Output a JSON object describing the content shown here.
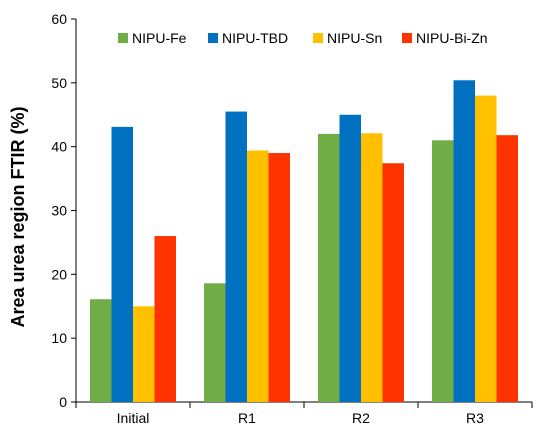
{
  "chart_data": {
    "type": "bar",
    "title": "",
    "xlabel": "",
    "ylabel": "Area urea region FTIR (%)",
    "ylim": [
      0,
      60
    ],
    "yticks": [
      0,
      10,
      20,
      30,
      40,
      50,
      60
    ],
    "categories": [
      "Initial",
      "R1",
      "R2",
      "R3"
    ],
    "grid": false,
    "legend_position": "top",
    "series": [
      {
        "name": "NIPU-Fe",
        "color": "#70AD47",
        "values": [
          16.1,
          18.6,
          42.0,
          41.0
        ]
      },
      {
        "name": "NIPU-TBD",
        "color": "#0070C0",
        "values": [
          43.1,
          45.5,
          45.0,
          50.4
        ]
      },
      {
        "name": "NIPU-Sn",
        "color": "#FFC000",
        "values": [
          15.0,
          39.4,
          42.1,
          48.0
        ]
      },
      {
        "name": "NIPU-Bi-Zn",
        "color": "#FF3300",
        "values": [
          26.0,
          39.0,
          37.4,
          41.8
        ]
      }
    ]
  }
}
